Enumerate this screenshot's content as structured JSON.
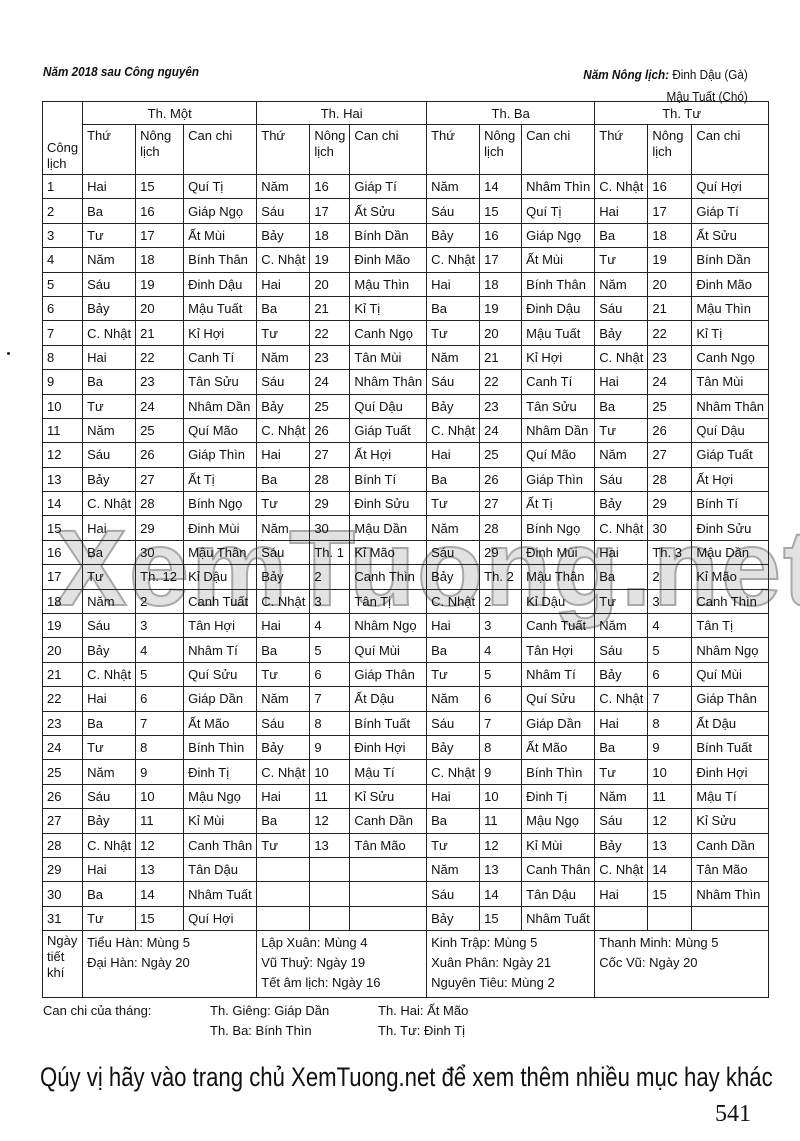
{
  "header": {
    "left": "Năm 2018  sau Công nguyên",
    "right_label": "Năm Nông lịch:",
    "right_line1": "Đinh Dậu (Gà)",
    "right_line2": "Mậu Tuất (Chó)"
  },
  "table": {
    "corner": "Công lịch",
    "months": [
      "Th. Một",
      "Th. Hai",
      "Th. Ba",
      "Th. Tư"
    ],
    "sub": [
      "Thứ",
      "Nông lịch",
      "Can chi"
    ],
    "rows": [
      [
        "1",
        "Hai",
        "15",
        "Quí Tị",
        "Năm",
        "16",
        "Giáp Tí",
        "Năm",
        "14",
        "Nhâm Thìn",
        "C. Nhật",
        "16",
        "Quí Hợi"
      ],
      [
        "2",
        "Ba",
        "16",
        "Giáp Ngọ",
        "Sáu",
        "17",
        "Ất Sửu",
        "Sáu",
        "15",
        "Quí Tị",
        "Hai",
        "17",
        "Giáp Tí"
      ],
      [
        "3",
        "Tư",
        "17",
        "Ất Mùi",
        "Bảy",
        "18",
        "Bính Dần",
        "Bảy",
        "16",
        "Giáp Ngọ",
        "Ba",
        "18",
        "Ất Sửu"
      ],
      [
        "4",
        "Năm",
        "18",
        "Bính Thân",
        "C. Nhật",
        "19",
        "Đinh Mão",
        "C. Nhật",
        "17",
        "Ất Mùi",
        "Tư",
        "19",
        "Bính Dần"
      ],
      [
        "5",
        "Sáu",
        "19",
        "Đinh Dậu",
        "Hai",
        "20",
        "Mậu Thìn",
        "Hai",
        "18",
        "Bính Thân",
        "Năm",
        "20",
        "Đinh Mão"
      ],
      [
        "6",
        "Bảy",
        "20",
        "Mậu Tuất",
        "Ba",
        "21",
        "Kỉ Tị",
        "Ba",
        "19",
        "Đinh Dậu",
        "Sáu",
        "21",
        "Mậu Thìn"
      ],
      [
        "7",
        "C. Nhật",
        "21",
        "Kỉ Hợi",
        "Tư",
        "22",
        "Canh Ngọ",
        "Tư",
        "20",
        "Mậu Tuất",
        "Bảy",
        "22",
        "Kỉ Tị"
      ],
      [
        "8",
        "Hai",
        "22",
        "Canh Tí",
        "Năm",
        "23",
        "Tân Mùi",
        "Năm",
        "21",
        "Kỉ Hợi",
        "C. Nhật",
        "23",
        "Canh Ngọ"
      ],
      [
        "9",
        "Ba",
        "23",
        "Tân Sửu",
        "Sáu",
        "24",
        "Nhâm Thân",
        "Sáu",
        "22",
        "Canh Tí",
        "Hai",
        "24",
        "Tân Mùi"
      ],
      [
        "10",
        "Tư",
        "24",
        "Nhâm Dần",
        "Bảy",
        "25",
        "Quí Dậu",
        "Bảy",
        "23",
        "Tân Sửu",
        "Ba",
        "25",
        "Nhâm Thân"
      ],
      [
        "11",
        "Năm",
        "25",
        "Quí Mão",
        "C. Nhật",
        "26",
        "Giáp Tuất",
        "C. Nhật",
        "24",
        "Nhâm Dần",
        "Tư",
        "26",
        "Quí Dậu"
      ],
      [
        "12",
        "Sáu",
        "26",
        "Giáp Thìn",
        "Hai",
        "27",
        "Ất Hợi",
        "Hai",
        "25",
        "Quí Mão",
        "Năm",
        "27",
        "Giáp Tuất"
      ],
      [
        "13",
        "Bảy",
        "27",
        "Ất Tị",
        "Ba",
        "28",
        "Bính Tí",
        "Ba",
        "26",
        "Giáp Thìn",
        "Sáu",
        "28",
        "Ất Hợi"
      ],
      [
        "14",
        "C. Nhật",
        "28",
        "Bính Ngọ",
        "Tư",
        "29",
        "Đinh Sửu",
        "Tư",
        "27",
        "Ất Tị",
        "Bảy",
        "29",
        "Bính Tí"
      ],
      [
        "15",
        "Hai",
        "29",
        "Đinh Mùi",
        "Năm",
        "30",
        "Mậu Dần",
        "Năm",
        "28",
        "Bính Ngọ",
        "C. Nhật",
        "30",
        "Đinh Sửu"
      ],
      [
        "16",
        "Ba",
        "30",
        "Mậu Thân",
        "Sáu",
        "Th. 1",
        "Kỉ Mão",
        "Sáu",
        "29",
        "Đinh Mùi",
        "Hai",
        "Th. 3",
        "Mậu Dần"
      ],
      [
        "17",
        "Tư",
        "Th. 12",
        "Kỉ Dậu",
        "Bảy",
        "2",
        "Canh Thìn",
        "Bảy",
        "Th. 2",
        "Mậu Thân",
        "Ba",
        "2",
        "Kỉ Mão"
      ],
      [
        "18",
        "Năm",
        "2",
        "Canh Tuất",
        "C. Nhật",
        "3",
        "Tân Tị",
        "C. Nhật",
        "2",
        "Kỉ Dậu",
        "Tư",
        "3",
        "Canh Thìn"
      ],
      [
        "19",
        "Sáu",
        "3",
        "Tân Hợi",
        "Hai",
        "4",
        "Nhâm Ngọ",
        "Hai",
        "3",
        "Canh Tuất",
        "Năm",
        "4",
        "Tân Tị"
      ],
      [
        "20",
        "Bảy",
        "4",
        "Nhâm Tí",
        "Ba",
        "5",
        "Quí Mùi",
        "Ba",
        "4",
        "Tân Hợi",
        "Sáu",
        "5",
        "Nhâm Ngọ"
      ],
      [
        "21",
        "C. Nhật",
        "5",
        "Quí Sửu",
        "Tư",
        "6",
        "Giáp Thân",
        "Tư",
        "5",
        "Nhâm Tí",
        "Bảy",
        "6",
        "Quí Mùi"
      ],
      [
        "22",
        "Hai",
        "6",
        "Giáp Dần",
        "Năm",
        "7",
        "Ất Dậu",
        "Năm",
        "6",
        "Quí Sửu",
        "C. Nhật",
        "7",
        "Giáp Thân"
      ],
      [
        "23",
        "Ba",
        "7",
        "Ất Mão",
        "Sáu",
        "8",
        "Bính Tuất",
        "Sáu",
        "7",
        "Giáp Dần",
        "Hai",
        "8",
        "Ất Dậu"
      ],
      [
        "24",
        "Tư",
        "8",
        "Bính Thìn",
        "Bảy",
        "9",
        "Đinh Hợi",
        "Bảy",
        "8",
        "Ất Mão",
        "Ba",
        "9",
        "Bính Tuất"
      ],
      [
        "25",
        "Năm",
        "9",
        "Đinh Tị",
        "C. Nhật",
        "10",
        "Mậu Tí",
        "C. Nhật",
        "9",
        "Bính Thìn",
        "Tư",
        "10",
        "Đinh Hợi"
      ],
      [
        "26",
        "Sáu",
        "10",
        "Mậu Ngọ",
        "Hai",
        "11",
        "Kỉ Sửu",
        "Hai",
        "10",
        "Đinh Tị",
        "Năm",
        "11",
        "Mậu Tí"
      ],
      [
        "27",
        "Bảy",
        "11",
        "Kỉ Mùi",
        "Ba",
        "12",
        "Canh Dần",
        "Ba",
        "11",
        "Mậu Ngọ",
        "Sáu",
        "12",
        "Kỉ Sửu"
      ],
      [
        "28",
        "C. Nhật",
        "12",
        "Canh Thân",
        "Tư",
        "13",
        "Tân Mão",
        "Tư",
        "12",
        "Kỉ Mùi",
        "Bảy",
        "13",
        "Canh Dần"
      ],
      [
        "29",
        "Hai",
        "13",
        "Tân Dậu",
        "",
        "",
        "",
        "Năm",
        "13",
        "Canh Thân",
        "C. Nhật",
        "14",
        "Tân Mão"
      ],
      [
        "30",
        "Ba",
        "14",
        "Nhâm Tuất",
        "",
        "",
        "",
        "Sáu",
        "14",
        "Tân Dậu",
        "Hai",
        "15",
        "Nhâm Thìn"
      ],
      [
        "31",
        "Tư",
        "15",
        "Quí Hợi",
        "",
        "",
        "",
        "Bảy",
        "15",
        "Nhâm Tuất",
        "",
        "",
        ""
      ]
    ],
    "footer_label": "Ngày tiết khí",
    "footer": [
      [
        "Tiểu Hàn: Mùng 5",
        "Đại Hàn: Ngày 20"
      ],
      [
        "Lập Xuân: Mùng 4",
        "Vũ Thuỷ: Ngày 19",
        "Tết âm lịch: Ngày 16"
      ],
      [
        "Kinh Trập: Mùng 5",
        "Xuân Phân: Ngày 21",
        "Nguyên Tiêu: Mùng 2"
      ],
      [
        "Thanh Minh: Mùng 5",
        "Cốc Vũ: Ngày 20"
      ]
    ]
  },
  "canchi": {
    "label": "Can chi của tháng:",
    "gieng": "Th. Giêng: Giáp Dần",
    "hai": "Th. Hai: Ất Mão",
    "ba": "Th. Ba:  Bính Thìn",
    "tu": "Th. Tư: Đinh Tị"
  },
  "watermark": "XemTuong.net",
  "ad": "Qúy vị hãy vào trang chủ XemTuong.net để xem thêm nhiều mục hay khác",
  "page_number": "541"
}
